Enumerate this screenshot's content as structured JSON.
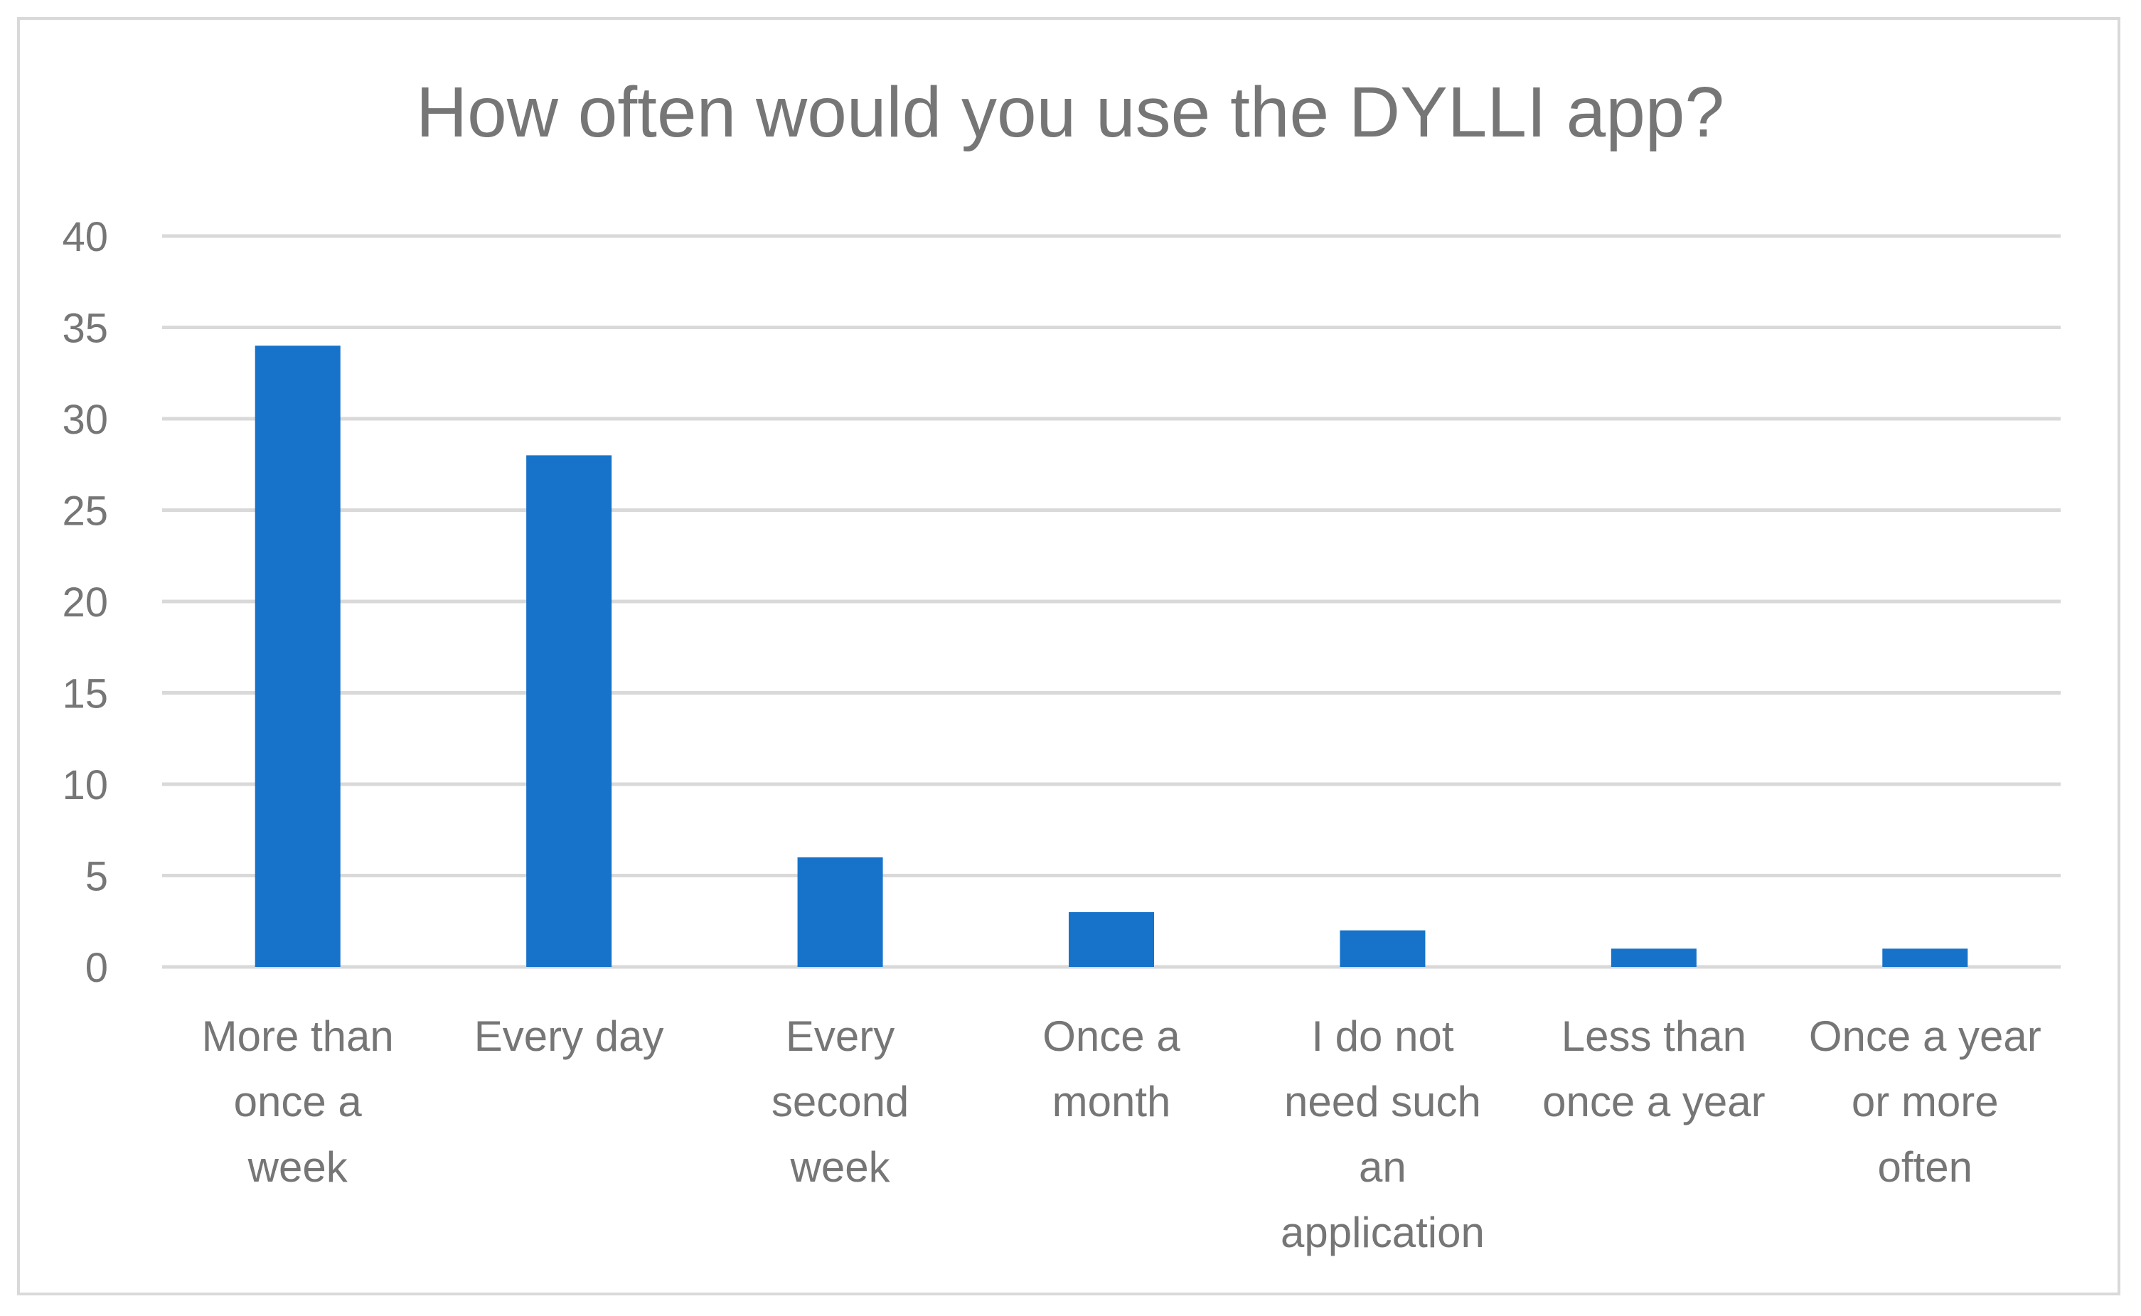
{
  "chart_data": {
    "type": "bar",
    "title": "How often would you use the DYLLI app?",
    "categories": [
      [
        "More than",
        "once a",
        "week"
      ],
      [
        "Every day"
      ],
      [
        "Every",
        "second",
        "week"
      ],
      [
        "Once a",
        "month"
      ],
      [
        "I do not",
        "need such",
        "an",
        "application"
      ],
      [
        "Less than",
        "once a year"
      ],
      [
        "Once a year",
        "or more",
        "often"
      ]
    ],
    "values": [
      34,
      28,
      6,
      3,
      2,
      1,
      1
    ],
    "ylim": [
      0,
      40
    ],
    "yticks": [
      0,
      5,
      10,
      15,
      20,
      25,
      30,
      35,
      40
    ],
    "grid": true,
    "legend": "none",
    "colors": {
      "bar": "#1673c9",
      "grid": "#d9d9d9",
      "text": "#767676",
      "frame": "#d9d9d9"
    }
  }
}
